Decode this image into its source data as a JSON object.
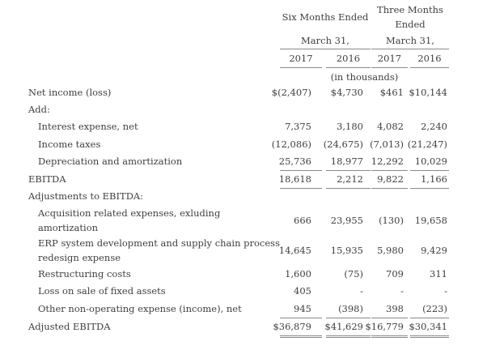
{
  "header": {
    "six_months": "Six Months Ended",
    "three_months_line1": "Three Months",
    "three_months_line2": "Ended",
    "march_left": "March 31,",
    "march_right": "March 31,",
    "years": [
      "2017",
      "2016",
      "2017",
      "2016"
    ],
    "units": "(in thousands)"
  },
  "rows": {
    "net_income": {
      "label": "Net income (loss)",
      "values": [
        "$(2,407)",
        "$4,730",
        "$461",
        "$10,144"
      ]
    },
    "add": {
      "label": "Add:"
    },
    "interest": {
      "label": "Interest expense, net",
      "values": [
        "7,375",
        "3,180",
        "4,082",
        "2,240"
      ]
    },
    "taxes": {
      "label": "Income taxes",
      "values": [
        "(12,086)",
        "(24,675)",
        "(7,013)",
        "(21,247)"
      ]
    },
    "depreciation": {
      "label": "Depreciation and amortization",
      "values": [
        "25,736",
        "18,977",
        "12,292",
        "10,029"
      ]
    },
    "ebitda": {
      "label": "EBITDA",
      "values": [
        "18,618",
        "2,212",
        "9,822",
        "1,166"
      ]
    },
    "adjustments": {
      "label": "Adjustments to EBITDA:"
    },
    "acquisition": {
      "label_line1": "Acquisition related expenses, exluding",
      "label_line2": "amortization",
      "values": [
        "666",
        "23,955",
        "(130)",
        "19,658"
      ]
    },
    "erp": {
      "label_line1": "ERP system development and supply chain process",
      "label_line2": "redesign expense",
      "values": [
        "14,645",
        "15,935",
        "5,980",
        "9,429"
      ]
    },
    "restructuring": {
      "label": "Restructuring costs",
      "values": [
        "1,600",
        "(75)",
        "709",
        "311"
      ]
    },
    "loss_sale": {
      "label": "Loss on sale of fixed assets",
      "values": [
        "405",
        "-",
        "-",
        "-"
      ]
    },
    "other": {
      "label": "Other non-operating expense (income), net",
      "values": [
        "945",
        "(398)",
        "398",
        "(223)"
      ]
    },
    "adjusted_ebitda": {
      "label": "Adjusted EBITDA",
      "values": [
        "$36,879",
        "$41,629",
        "$16,779",
        "$30,341"
      ]
    }
  }
}
